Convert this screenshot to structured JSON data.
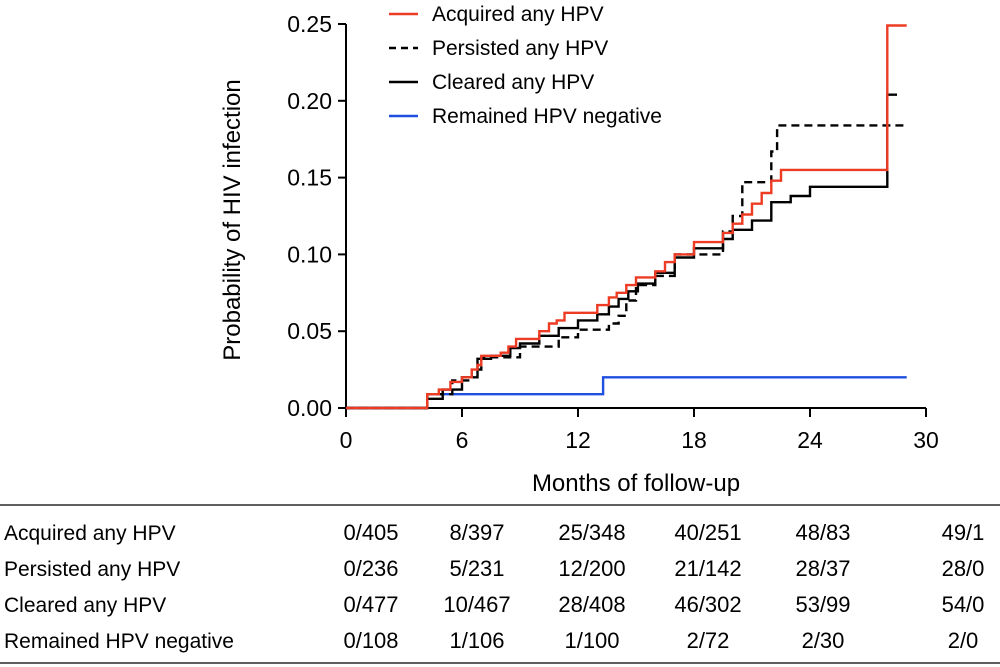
{
  "chart_data": {
    "type": "line",
    "step": true,
    "xlabel": "Months of follow-up",
    "ylabel": "Probability of HIV infection",
    "xlim": [
      0,
      30
    ],
    "ylim": [
      0,
      0.25
    ],
    "xticks": [
      0,
      6,
      12,
      18,
      24,
      30
    ],
    "xtick_labels": [
      "0",
      "6",
      "12",
      "18",
      "24",
      "30"
    ],
    "yticks": [
      0,
      0.05,
      0.1,
      0.15,
      0.2,
      0.25
    ],
    "ytick_labels": [
      "0.00",
      "0.05",
      "0.10",
      "0.15",
      "0.20",
      "0.25"
    ],
    "legend_position": "top-right",
    "series": [
      {
        "name": "Acquired any HPV",
        "color": "#ee3b24",
        "style": "solid",
        "x": [
          0,
          4.2,
          4.8,
          5.4,
          6.0,
          6.5,
          6.8,
          7.0,
          8.0,
          8.4,
          8.8,
          9.0,
          10.0,
          10.5,
          10.9,
          11.3,
          12.0,
          13.0,
          13.6,
          14.0,
          14.5,
          15.0,
          16.0,
          16.5,
          17.0,
          18.0,
          19.0,
          19.5,
          20.0,
          20.5,
          21.0,
          21.5,
          22.0,
          22.5,
          28.0,
          29.0
        ],
        "y": [
          0,
          0.009,
          0.012,
          0.017,
          0.02,
          0.025,
          0.028,
          0.034,
          0.036,
          0.04,
          0.045,
          0.045,
          0.05,
          0.055,
          0.057,
          0.062,
          0.062,
          0.067,
          0.072,
          0.075,
          0.08,
          0.085,
          0.089,
          0.095,
          0.1,
          0.108,
          0.108,
          0.114,
          0.12,
          0.126,
          0.133,
          0.14,
          0.148,
          0.155,
          0.249,
          0.249
        ]
      },
      {
        "name": "Persisted any HPV",
        "color": "#000000",
        "style": "dashed",
        "x": [
          0,
          4.2,
          5.5,
          6.5,
          7.0,
          8.0,
          9.0,
          10.0,
          11.0,
          12.0,
          13.0,
          13.6,
          14.1,
          14.5,
          15.0,
          16.0,
          17.0,
          18.5,
          19.5,
          20.0,
          20.5,
          21.5,
          22.0,
          22.3,
          28.0,
          29.0
        ],
        "y": [
          0,
          0.009,
          0.018,
          0.025,
          0.033,
          0.033,
          0.04,
          0.04,
          0.046,
          0.051,
          0.051,
          0.055,
          0.06,
          0.07,
          0.08,
          0.086,
          0.1,
          0.1,
          0.115,
          0.125,
          0.147,
          0.147,
          0.167,
          0.184,
          0.184,
          0.184
        ]
      },
      {
        "name": "Cleared any HPV",
        "color": "#000000",
        "style": "solid",
        "x": [
          0,
          4.2,
          5.0,
          6.0,
          6.8,
          7.5,
          8.5,
          9.0,
          10.0,
          11.0,
          12.0,
          13.0,
          13.6,
          14.1,
          14.6,
          15.1,
          16.0,
          17.0,
          18.0,
          19.5,
          20.0,
          21.0,
          22.0,
          23.0,
          24.0,
          28.0,
          28.5
        ],
        "y": [
          0,
          0.006,
          0.012,
          0.02,
          0.032,
          0.034,
          0.039,
          0.042,
          0.047,
          0.052,
          0.057,
          0.061,
          0.066,
          0.071,
          0.076,
          0.081,
          0.088,
          0.098,
          0.104,
          0.11,
          0.116,
          0.122,
          0.134,
          0.138,
          0.144,
          0.204,
          0.204
        ]
      },
      {
        "name": "Remained HPV negative",
        "color": "#1f4fe0",
        "style": "solid",
        "x": [
          0,
          4.2,
          13.3,
          29.0
        ],
        "y": [
          0,
          0.009,
          0.02,
          0.02
        ]
      }
    ],
    "risk_table": {
      "rows": [
        {
          "label": "Acquired any HPV",
          "values": [
            "0/405",
            "8/397",
            "25/348",
            "40/251",
            "48/83",
            "49/1"
          ]
        },
        {
          "label": "Persisted any HPV",
          "values": [
            "0/236",
            "5/231",
            "12/200",
            "21/142",
            "28/37",
            "28/0"
          ]
        },
        {
          "label": "Cleared any HPV",
          "values": [
            "0/477",
            "10/467",
            "28/408",
            "46/302",
            "53/99",
            "54/0"
          ]
        },
        {
          "label": "Remained HPV negative",
          "values": [
            "0/108",
            "1/106",
            "1/100",
            "2/72",
            "2/30",
            "2/0"
          ]
        }
      ]
    }
  }
}
